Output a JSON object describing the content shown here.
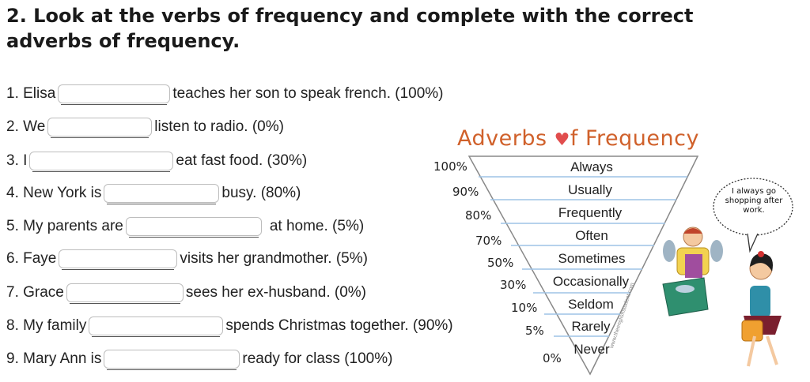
{
  "title": "2. Look at the verbs of frequency and complete with the correct adverbs of frequency.",
  "exercises": [
    {
      "before": "1. Elisa",
      "after": "teaches her son to speak french. (100%)"
    },
    {
      "before": "2. We",
      "after": "listen to radio. (0%)"
    },
    {
      "before": "3. I",
      "after": "eat fast food. (30%)"
    },
    {
      "before": "4. New York is",
      "after": "busy. (80%)"
    },
    {
      "before": "5. My parents are",
      "after": "at home. (5%)"
    },
    {
      "before": "6. Faye",
      "after": "visits her grandmother. (5%)"
    },
    {
      "before": "7. Grace",
      "after": "sees her ex-husband. (0%)"
    },
    {
      "before": "8. My family",
      "after": "spends Christmas together. (90%)"
    },
    {
      "before": "9. Mary Ann is",
      "after": "ready for class (100%)"
    }
  ],
  "pyramid": {
    "title_part1": "Adverbs ",
    "heart": "♥",
    "title_part2": "f Frequency",
    "levels": [
      {
        "pct": "100%",
        "adverb": "Always"
      },
      {
        "pct": "90%",
        "adverb": "Usually"
      },
      {
        "pct": "80%",
        "adverb": "Frequently"
      },
      {
        "pct": "70%",
        "adverb": "Often"
      },
      {
        "pct": "50%",
        "adverb": "Sometimes"
      },
      {
        "pct": "30%",
        "adverb": "Occasionally"
      },
      {
        "pct": "10%",
        "adverb": "Seldom"
      },
      {
        "pct": "5%",
        "adverb": "Rarely"
      },
      {
        "pct": "0%",
        "adverb": "Never"
      }
    ],
    "speech_bubble": "I always go shopping after work.",
    "watermark": "www.theenglishstudent.com"
  },
  "colors": {
    "title_orange": "#d0612b",
    "heart_red": "#e14d4d",
    "pyramid_line": "#9ec3e6",
    "blank_border": "#bdbdbd"
  }
}
